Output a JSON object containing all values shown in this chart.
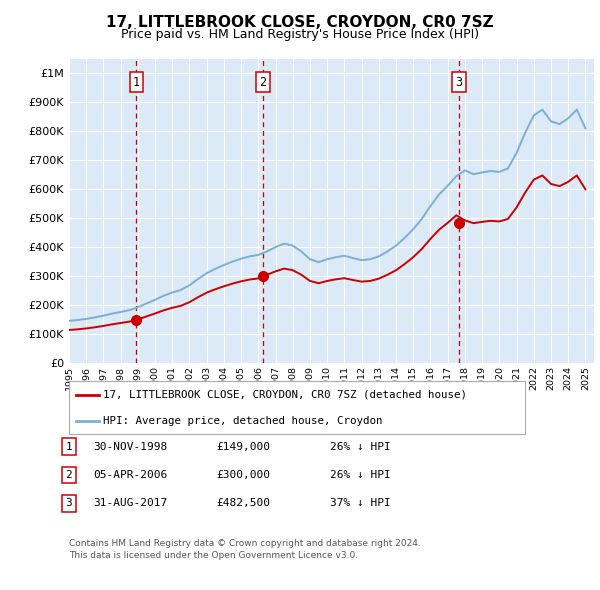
{
  "title": "17, LITTLEBROOK CLOSE, CROYDON, CR0 7SZ",
  "subtitle": "Price paid vs. HM Land Registry's House Price Index (HPI)",
  "background_color": "#ffffff",
  "plot_bg_color": "#dce9f7",
  "grid_color": "#ffffff",
  "hpi_color": "#7bafd4",
  "price_color": "#cc0000",
  "vline_color": "#cc0000",
  "ylim": [
    0,
    1050000
  ],
  "yticks": [
    0,
    100000,
    200000,
    300000,
    400000,
    500000,
    600000,
    700000,
    800000,
    900000,
    1000000
  ],
  "ytick_labels": [
    "£0",
    "£100K",
    "£200K",
    "£300K",
    "£400K",
    "£500K",
    "£600K",
    "£700K",
    "£800K",
    "£900K",
    "£1M"
  ],
  "transaction_dates": [
    1998.92,
    2006.27,
    2017.67
  ],
  "transaction_prices": [
    149000,
    300000,
    482500
  ],
  "transaction_labels": [
    "1",
    "2",
    "3"
  ],
  "legend_entries": [
    "17, LITTLEBROOK CLOSE, CROYDON, CR0 7SZ (detached house)",
    "HPI: Average price, detached house, Croydon"
  ],
  "table_rows": [
    {
      "num": "1",
      "date": "30-NOV-1998",
      "price": "£149,000",
      "note": "26% ↓ HPI"
    },
    {
      "num": "2",
      "date": "05-APR-2006",
      "price": "£300,000",
      "note": "26% ↓ HPI"
    },
    {
      "num": "3",
      "date": "31-AUG-2017",
      "price": "£482,500",
      "note": "37% ↓ HPI"
    }
  ],
  "footer": [
    "Contains HM Land Registry data © Crown copyright and database right 2024.",
    "This data is licensed under the Open Government Licence v3.0."
  ],
  "hpi_years": [
    1995.0,
    1995.5,
    1996.0,
    1996.5,
    1997.0,
    1997.5,
    1998.0,
    1998.5,
    1999.0,
    1999.5,
    2000.0,
    2000.5,
    2001.0,
    2001.5,
    2002.0,
    2002.5,
    2003.0,
    2003.5,
    2004.0,
    2004.5,
    2005.0,
    2005.5,
    2006.0,
    2006.5,
    2007.0,
    2007.5,
    2008.0,
    2008.5,
    2009.0,
    2009.5,
    2010.0,
    2010.5,
    2011.0,
    2011.5,
    2012.0,
    2012.5,
    2013.0,
    2013.5,
    2014.0,
    2014.5,
    2015.0,
    2015.5,
    2016.0,
    2016.5,
    2017.0,
    2017.5,
    2018.0,
    2018.5,
    2019.0,
    2019.5,
    2020.0,
    2020.5,
    2021.0,
    2021.5,
    2022.0,
    2022.5,
    2023.0,
    2023.5,
    2024.0,
    2024.5,
    2025.0
  ],
  "hpi_values": [
    145000,
    148000,
    152000,
    157000,
    163000,
    170000,
    176000,
    182000,
    192000,
    205000,
    218000,
    232000,
    243000,
    252000,
    268000,
    290000,
    310000,
    325000,
    338000,
    350000,
    360000,
    368000,
    373000,
    385000,
    400000,
    412000,
    405000,
    385000,
    358000,
    348000,
    358000,
    365000,
    370000,
    362000,
    355000,
    358000,
    368000,
    385000,
    405000,
    432000,
    462000,
    498000,
    542000,
    582000,
    612000,
    645000,
    665000,
    652000,
    658000,
    663000,
    660000,
    672000,
    725000,
    795000,
    855000,
    875000,
    835000,
    825000,
    845000,
    875000,
    810000
  ]
}
